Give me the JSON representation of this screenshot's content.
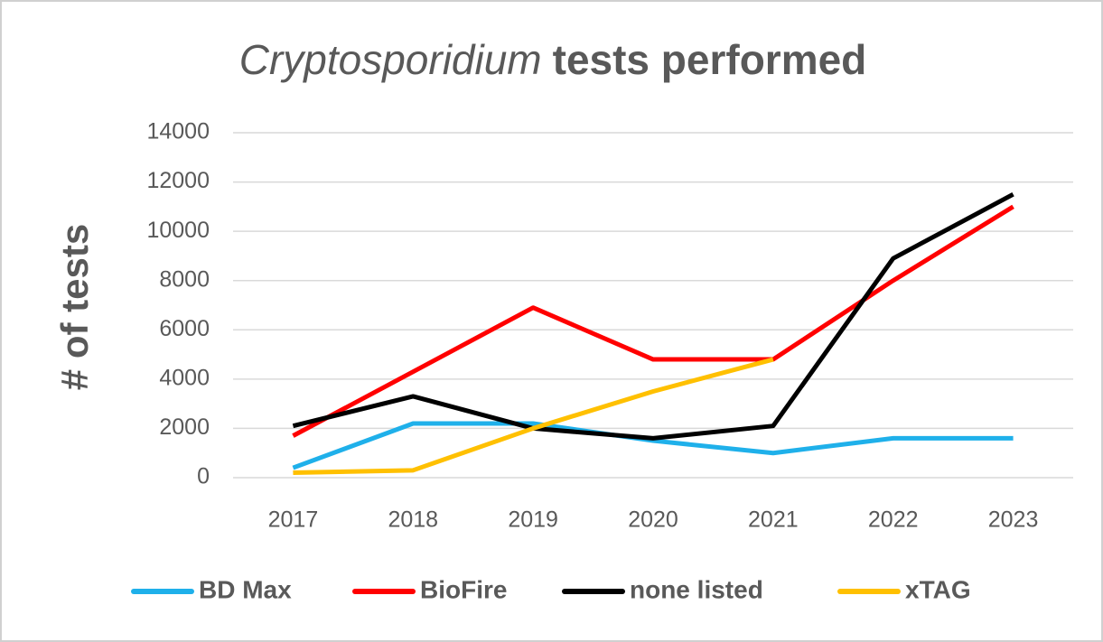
{
  "chart_data": {
    "type": "line",
    "title": [
      "Cryptosporidium",
      "tests performed"
    ],
    "ylabel": "# of tests",
    "categories": [
      "2017",
      "2018",
      "2019",
      "2020",
      "2021",
      "2022",
      "2023"
    ],
    "series": [
      {
        "name": "BD Max",
        "color": "#1fb0ea",
        "values": [
          400,
          2200,
          2200,
          1500,
          1000,
          1600,
          1600
        ]
      },
      {
        "name": "BioFire",
        "color": "#ff0000",
        "values": [
          1700,
          4300,
          6900,
          4800,
          4800,
          8000,
          11000
        ]
      },
      {
        "name": "none listed",
        "color": "#000000",
        "values": [
          2100,
          3300,
          2000,
          1600,
          2100,
          8900,
          11500
        ]
      },
      {
        "name": "xTAG",
        "color": "#ffc000",
        "values": [
          200,
          300,
          2000,
          3500,
          4800,
          null,
          null
        ]
      }
    ],
    "ylim": [
      0,
      14000
    ],
    "yticks": [
      0,
      2000,
      4000,
      6000,
      8000,
      10000,
      12000,
      14000
    ],
    "grid": true,
    "legend": "bottom"
  }
}
